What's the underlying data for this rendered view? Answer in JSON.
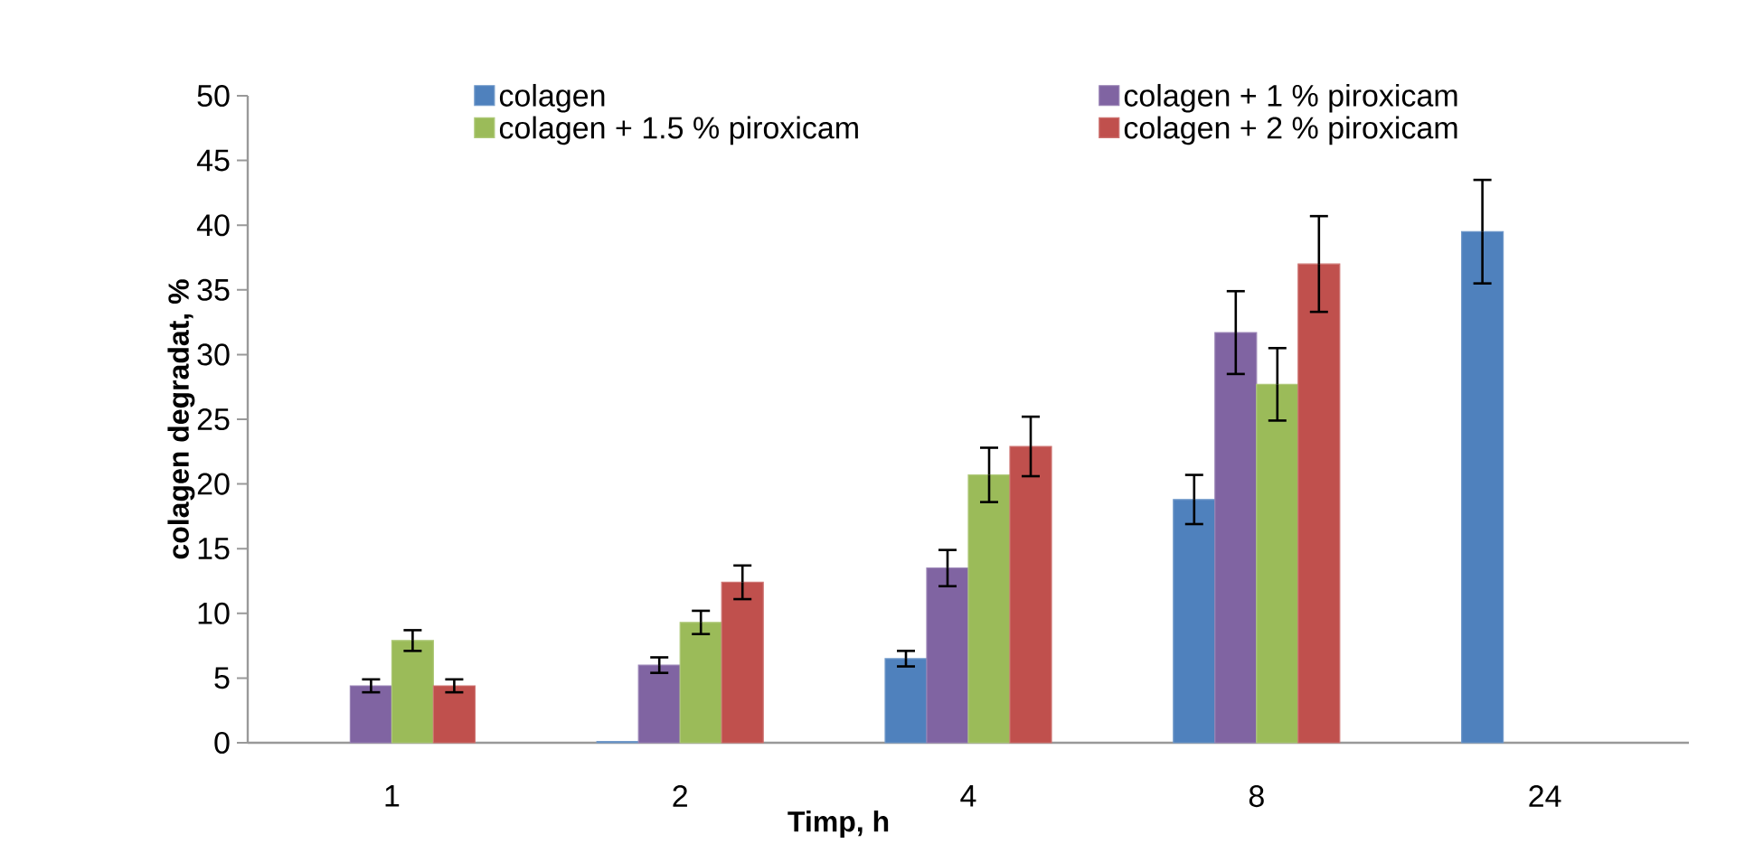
{
  "chart_data": {
    "type": "bar",
    "xlabel": "Timp, h",
    "ylabel": "colagen degradat, %",
    "categories": [
      "1",
      "2",
      "4",
      "8",
      "24"
    ],
    "ylim": [
      0,
      50
    ],
    "yticks": [
      0,
      5,
      10,
      15,
      20,
      25,
      30,
      35,
      40,
      45,
      50
    ],
    "grid": false,
    "legend": "top",
    "series": [
      {
        "name": "colagen",
        "color": "#4f81bd",
        "values": [
          null,
          0.1,
          6.5,
          18.8,
          39.5
        ],
        "errors": [
          null,
          null,
          0.6,
          1.9,
          4.0
        ]
      },
      {
        "name": "colagen + 1 % piroxicam",
        "color": "#8064a2",
        "values": [
          4.4,
          6.0,
          13.5,
          31.7,
          null
        ],
        "errors": [
          0.5,
          0.6,
          1.4,
          3.2,
          null
        ]
      },
      {
        "name": "colagen + 1.5 % piroxicam",
        "color": "#9bbb59",
        "values": [
          7.9,
          9.3,
          20.7,
          27.7,
          null
        ],
        "errors": [
          0.8,
          0.9,
          2.1,
          2.8,
          null
        ]
      },
      {
        "name": "colagen + 2 % piroxicam",
        "color": "#c0504d",
        "values": [
          4.4,
          12.4,
          22.9,
          37.0,
          null
        ],
        "errors": [
          0.5,
          1.3,
          2.3,
          3.7,
          null
        ]
      }
    ]
  }
}
